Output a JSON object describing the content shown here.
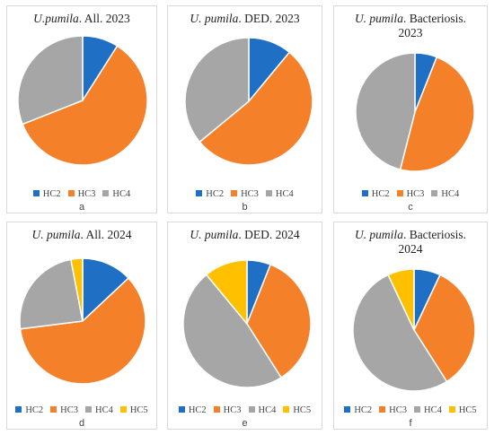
{
  "colors": {
    "HC2": "#1f6fc5",
    "HC3": "#f4812a",
    "HC4": "#a6a6a6",
    "HC5": "#ffc000"
  },
  "chart_data": [
    {
      "type": "pie",
      "title_species": "U.pumila",
      "title_rest": ". All. 2023",
      "panel_label": "a",
      "legend": [
        "HC2",
        "HC3",
        "HC4"
      ],
      "slices": [
        {
          "label": "HC2",
          "value": 0.09
        },
        {
          "label": "HC3",
          "value": 0.6
        },
        {
          "label": "HC4",
          "value": 0.31
        }
      ]
    },
    {
      "type": "pie",
      "title_species": "U. pumila",
      "title_rest": ". DED. 2023",
      "panel_label": "b",
      "legend": [
        "HC2",
        "HC3",
        "HC4"
      ],
      "slices": [
        {
          "label": "HC2",
          "value": 0.11
        },
        {
          "label": "HC3",
          "value": 0.53
        },
        {
          "label": "HC4",
          "value": 0.36
        }
      ]
    },
    {
      "type": "pie",
      "title_species": "U. pumila",
      "title_rest": ". Bacteriosis.",
      "title_line2": "2023",
      "panel_label": "c",
      "legend": [
        "HC2",
        "HC3",
        "HC4"
      ],
      "slices": [
        {
          "label": "HC2",
          "value": 0.06
        },
        {
          "label": "HC3",
          "value": 0.48
        },
        {
          "label": "HC4",
          "value": 0.46
        }
      ]
    },
    {
      "type": "pie",
      "title_species": "U. pumila",
      "title_rest": ". All. 2024",
      "panel_label": "d",
      "legend": [
        "HC2",
        "HC3",
        "HC4",
        "HC5"
      ],
      "slices": [
        {
          "label": "HC2",
          "value": 0.13
        },
        {
          "label": "HC3",
          "value": 0.6
        },
        {
          "label": "HC4",
          "value": 0.24
        },
        {
          "label": "HC5",
          "value": 0.03
        }
      ]
    },
    {
      "type": "pie",
      "title_species": "U. pumila",
      "title_rest": ". DED. 2024",
      "panel_label": "e",
      "legend": [
        "HC2",
        "HC3",
        "HC4",
        "HC5"
      ],
      "slices": [
        {
          "label": "HC2",
          "value": 0.06
        },
        {
          "label": "HC3",
          "value": 0.35
        },
        {
          "label": "HC4",
          "value": 0.48
        },
        {
          "label": "HC5",
          "value": 0.11
        }
      ]
    },
    {
      "type": "pie",
      "title_species": "U. pumila",
      "title_rest": ". Bacteriosis.",
      "title_line2": "2024",
      "panel_label": "f",
      "legend": [
        "HC2",
        "HC3",
        "HC4",
        "HC5"
      ],
      "slices": [
        {
          "label": "HC2",
          "value": 0.07
        },
        {
          "label": "HC3",
          "value": 0.34
        },
        {
          "label": "HC4",
          "value": 0.52
        },
        {
          "label": "HC5",
          "value": 0.07
        }
      ]
    }
  ]
}
